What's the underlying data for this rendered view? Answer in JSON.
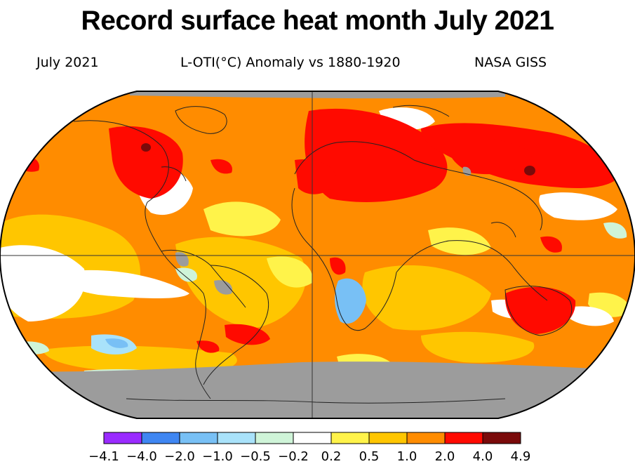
{
  "header": {
    "headline": "Record surface heat month July 2021",
    "period": "July 2021",
    "metric": "L-OTI(°C) Anomaly vs 1880-1920",
    "source": "NASA GISS"
  },
  "legend": {
    "ticks": [
      "−4.1",
      "−4.0",
      "−2.0",
      "−1.0",
      "−0.5",
      "−0.2",
      "0.2",
      "0.5",
      "1.0",
      "2.0",
      "4.0",
      "4.9"
    ],
    "colors": [
      "#9A2BFF",
      "#3F86F2",
      "#78C0F5",
      "#A9E2FA",
      "#CFF4D8",
      "#FFFFFF",
      "#FFF34A",
      "#FFC600",
      "#FF8C00",
      "#FF0A00",
      "#7A0A0A"
    ],
    "missing_color": "#9C9C9C"
  }
}
